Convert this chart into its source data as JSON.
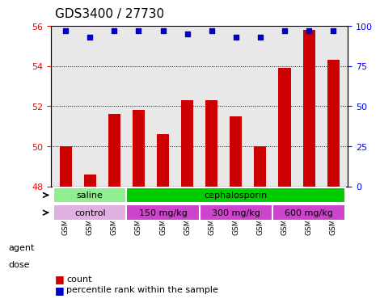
{
  "title": "GDS3400 / 27730",
  "samples": [
    "GSM253585",
    "GSM253586",
    "GSM253587",
    "GSM253588",
    "GSM253589",
    "GSM253590",
    "GSM253591",
    "GSM253592",
    "GSM253593",
    "GSM253594",
    "GSM253595",
    "GSM253596"
  ],
  "bar_values": [
    50.0,
    48.6,
    51.6,
    51.8,
    50.6,
    52.3,
    52.3,
    51.5,
    50.0,
    53.9,
    55.8,
    54.3
  ],
  "dot_values": [
    97,
    93,
    97,
    97,
    97,
    95,
    97,
    93,
    93,
    97,
    97,
    97
  ],
  "ylim_left": [
    48,
    56
  ],
  "ylim_right": [
    0,
    100
  ],
  "yticks_left": [
    48,
    50,
    52,
    54,
    56
  ],
  "yticks_right": [
    0,
    25,
    50,
    75,
    100
  ],
  "bar_color": "#cc0000",
  "dot_color": "#0000cc",
  "bar_width": 0.5,
  "agent_labels": [
    {
      "text": "saline",
      "start": 0,
      "end": 2,
      "color": "#90ee90"
    },
    {
      "text": "cephalosporin",
      "start": 3,
      "end": 11,
      "color": "#00cc00"
    }
  ],
  "dose_labels": [
    {
      "text": "control",
      "start": 0,
      "end": 2,
      "color": "#e0b0e0"
    },
    {
      "text": "150 mg/kg",
      "start": 3,
      "end": 5,
      "color": "#cc44cc"
    },
    {
      "text": "300 mg/kg",
      "start": 6,
      "end": 8,
      "color": "#cc44cc"
    },
    {
      "text": "600 mg/kg",
      "start": 9,
      "end": 11,
      "color": "#cc44cc"
    }
  ],
  "agent_row_label": "agent",
  "dose_row_label": "dose",
  "legend_count_label": "count",
  "legend_percentile_label": "percentile rank within the sample",
  "background_color": "#ffffff",
  "plot_bg_color": "#e8e8e8",
  "grid_color": "#000000",
  "title_fontsize": 11,
  "tick_fontsize": 8,
  "label_fontsize": 9
}
